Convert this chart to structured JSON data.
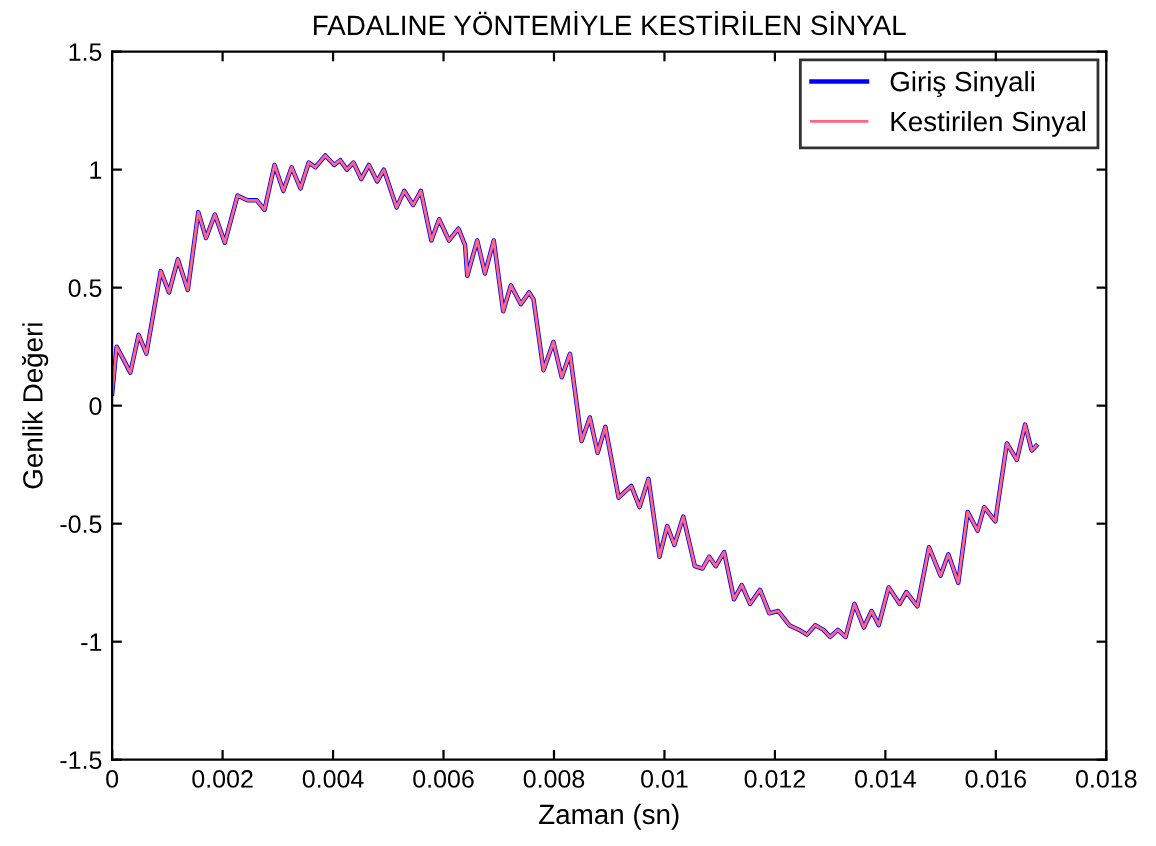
{
  "chart_data": {
    "type": "line",
    "title": "FADALINE YÖNTEMİYLE KESTİRİLEN SİNYAL",
    "xlabel": "Zaman (sn)",
    "ylabel": "Genlik Değeri",
    "x": [
      0,
      8.2e-05,
      0.00033,
      0.00048,
      0.00062,
      0.00088,
      0.00103,
      0.00119,
      0.00137,
      0.00156,
      0.0017,
      0.00186,
      0.00204,
      0.00227,
      0.00245,
      0.00262,
      0.00276,
      0.00294,
      0.0031,
      0.00325,
      0.00341,
      0.00356,
      0.00368,
      0.00386,
      0.00402,
      0.00413,
      0.00425,
      0.00437,
      0.00451,
      0.00465,
      0.0048,
      0.00492,
      0.00515,
      0.00529,
      0.00545,
      0.00559,
      0.00578,
      0.00592,
      0.0061,
      0.00627,
      0.00639,
      0.00643,
      0.00661,
      0.00675,
      0.00691,
      0.00708,
      0.00722,
      0.0074,
      0.00755,
      0.00763,
      0.00781,
      0.00799,
      0.00814,
      0.00829,
      0.0085,
      0.00865,
      0.00879,
      0.00893,
      0.00917,
      0.0094,
      0.00955,
      0.00971,
      0.00991,
      0.01005,
      0.01018,
      0.01034,
      0.01055,
      0.01069,
      0.01081,
      0.01093,
      0.01108,
      0.01126,
      0.0114,
      0.01155,
      0.01173,
      0.0119,
      0.01206,
      0.01226,
      0.01244,
      0.01258,
      0.01273,
      0.01288,
      0.013,
      0.01314,
      0.01328,
      0.01344,
      0.01361,
      0.01375,
      0.01388,
      0.01406,
      0.01426,
      0.01438,
      0.01458,
      0.01479,
      0.015,
      0.01514,
      0.01532,
      0.01549,
      0.01567,
      0.01579,
      0.01599,
      0.0162,
      0.01638,
      0.01653,
      0.01665,
      0.01673
    ],
    "series": [
      {
        "name": "Giriş Sinyali",
        "color": "#0000ff",
        "values": [
          0.05,
          0.25,
          0.14,
          0.3,
          0.22,
          0.57,
          0.48,
          0.62,
          0.49,
          0.82,
          0.71,
          0.81,
          0.69,
          0.89,
          0.87,
          0.87,
          0.83,
          1.02,
          0.91,
          1.01,
          0.92,
          1.03,
          1.01,
          1.06,
          1.02,
          1.04,
          1.0,
          1.03,
          0.96,
          1.02,
          0.95,
          1.0,
          0.84,
          0.91,
          0.85,
          0.91,
          0.7,
          0.79,
          0.7,
          0.75,
          0.68,
          0.55,
          0.7,
          0.56,
          0.7,
          0.4,
          0.51,
          0.43,
          0.48,
          0.45,
          0.15,
          0.27,
          0.12,
          0.22,
          -0.15,
          -0.05,
          -0.2,
          -0.09,
          -0.39,
          -0.34,
          -0.43,
          -0.31,
          -0.64,
          -0.51,
          -0.59,
          -0.47,
          -0.68,
          -0.69,
          -0.64,
          -0.68,
          -0.62,
          -0.82,
          -0.76,
          -0.84,
          -0.78,
          -0.88,
          -0.87,
          -0.93,
          -0.95,
          -0.97,
          -0.93,
          -0.95,
          -0.98,
          -0.95,
          -0.98,
          -0.84,
          -0.94,
          -0.87,
          -0.93,
          -0.77,
          -0.84,
          -0.79,
          -0.85,
          -0.6,
          -0.72,
          -0.63,
          -0.75,
          -0.45,
          -0.53,
          -0.43,
          -0.49,
          -0.16,
          -0.23,
          -0.08,
          -0.19,
          -0.17
        ]
      },
      {
        "name": "Kestirilen Sinyal",
        "color": "#ff6680",
        "values": [
          0.05,
          0.25,
          0.14,
          0.3,
          0.22,
          0.57,
          0.48,
          0.62,
          0.49,
          0.82,
          0.71,
          0.81,
          0.69,
          0.89,
          0.87,
          0.87,
          0.83,
          1.02,
          0.91,
          1.01,
          0.92,
          1.03,
          1.01,
          1.06,
          1.02,
          1.04,
          1.0,
          1.03,
          0.96,
          1.02,
          0.95,
          1.0,
          0.84,
          0.91,
          0.85,
          0.91,
          0.7,
          0.79,
          0.7,
          0.75,
          0.68,
          0.55,
          0.7,
          0.56,
          0.7,
          0.4,
          0.51,
          0.43,
          0.48,
          0.45,
          0.15,
          0.27,
          0.12,
          0.22,
          -0.15,
          -0.05,
          -0.2,
          -0.09,
          -0.39,
          -0.34,
          -0.43,
          -0.31,
          -0.64,
          -0.51,
          -0.59,
          -0.47,
          -0.68,
          -0.69,
          -0.64,
          -0.68,
          -0.62,
          -0.82,
          -0.76,
          -0.84,
          -0.78,
          -0.88,
          -0.87,
          -0.93,
          -0.95,
          -0.97,
          -0.93,
          -0.95,
          -0.98,
          -0.95,
          -0.98,
          -0.84,
          -0.94,
          -0.87,
          -0.93,
          -0.77,
          -0.84,
          -0.79,
          -0.85,
          -0.6,
          -0.72,
          -0.63,
          -0.75,
          -0.45,
          -0.53,
          -0.43,
          -0.49,
          -0.16,
          -0.23,
          -0.08,
          -0.19,
          -0.17
        ]
      }
    ],
    "xlim": [
      0,
      0.018
    ],
    "xticks": [
      0,
      0.002,
      0.004,
      0.006,
      0.008,
      0.01,
      0.012,
      0.014,
      0.016,
      0.018
    ],
    "ylim": [
      -1.5,
      1.5
    ],
    "yticks": [
      -1.5,
      -1,
      -0.5,
      0,
      0.5,
      1,
      1.5
    ],
    "legend": "top right",
    "grid": false
  }
}
